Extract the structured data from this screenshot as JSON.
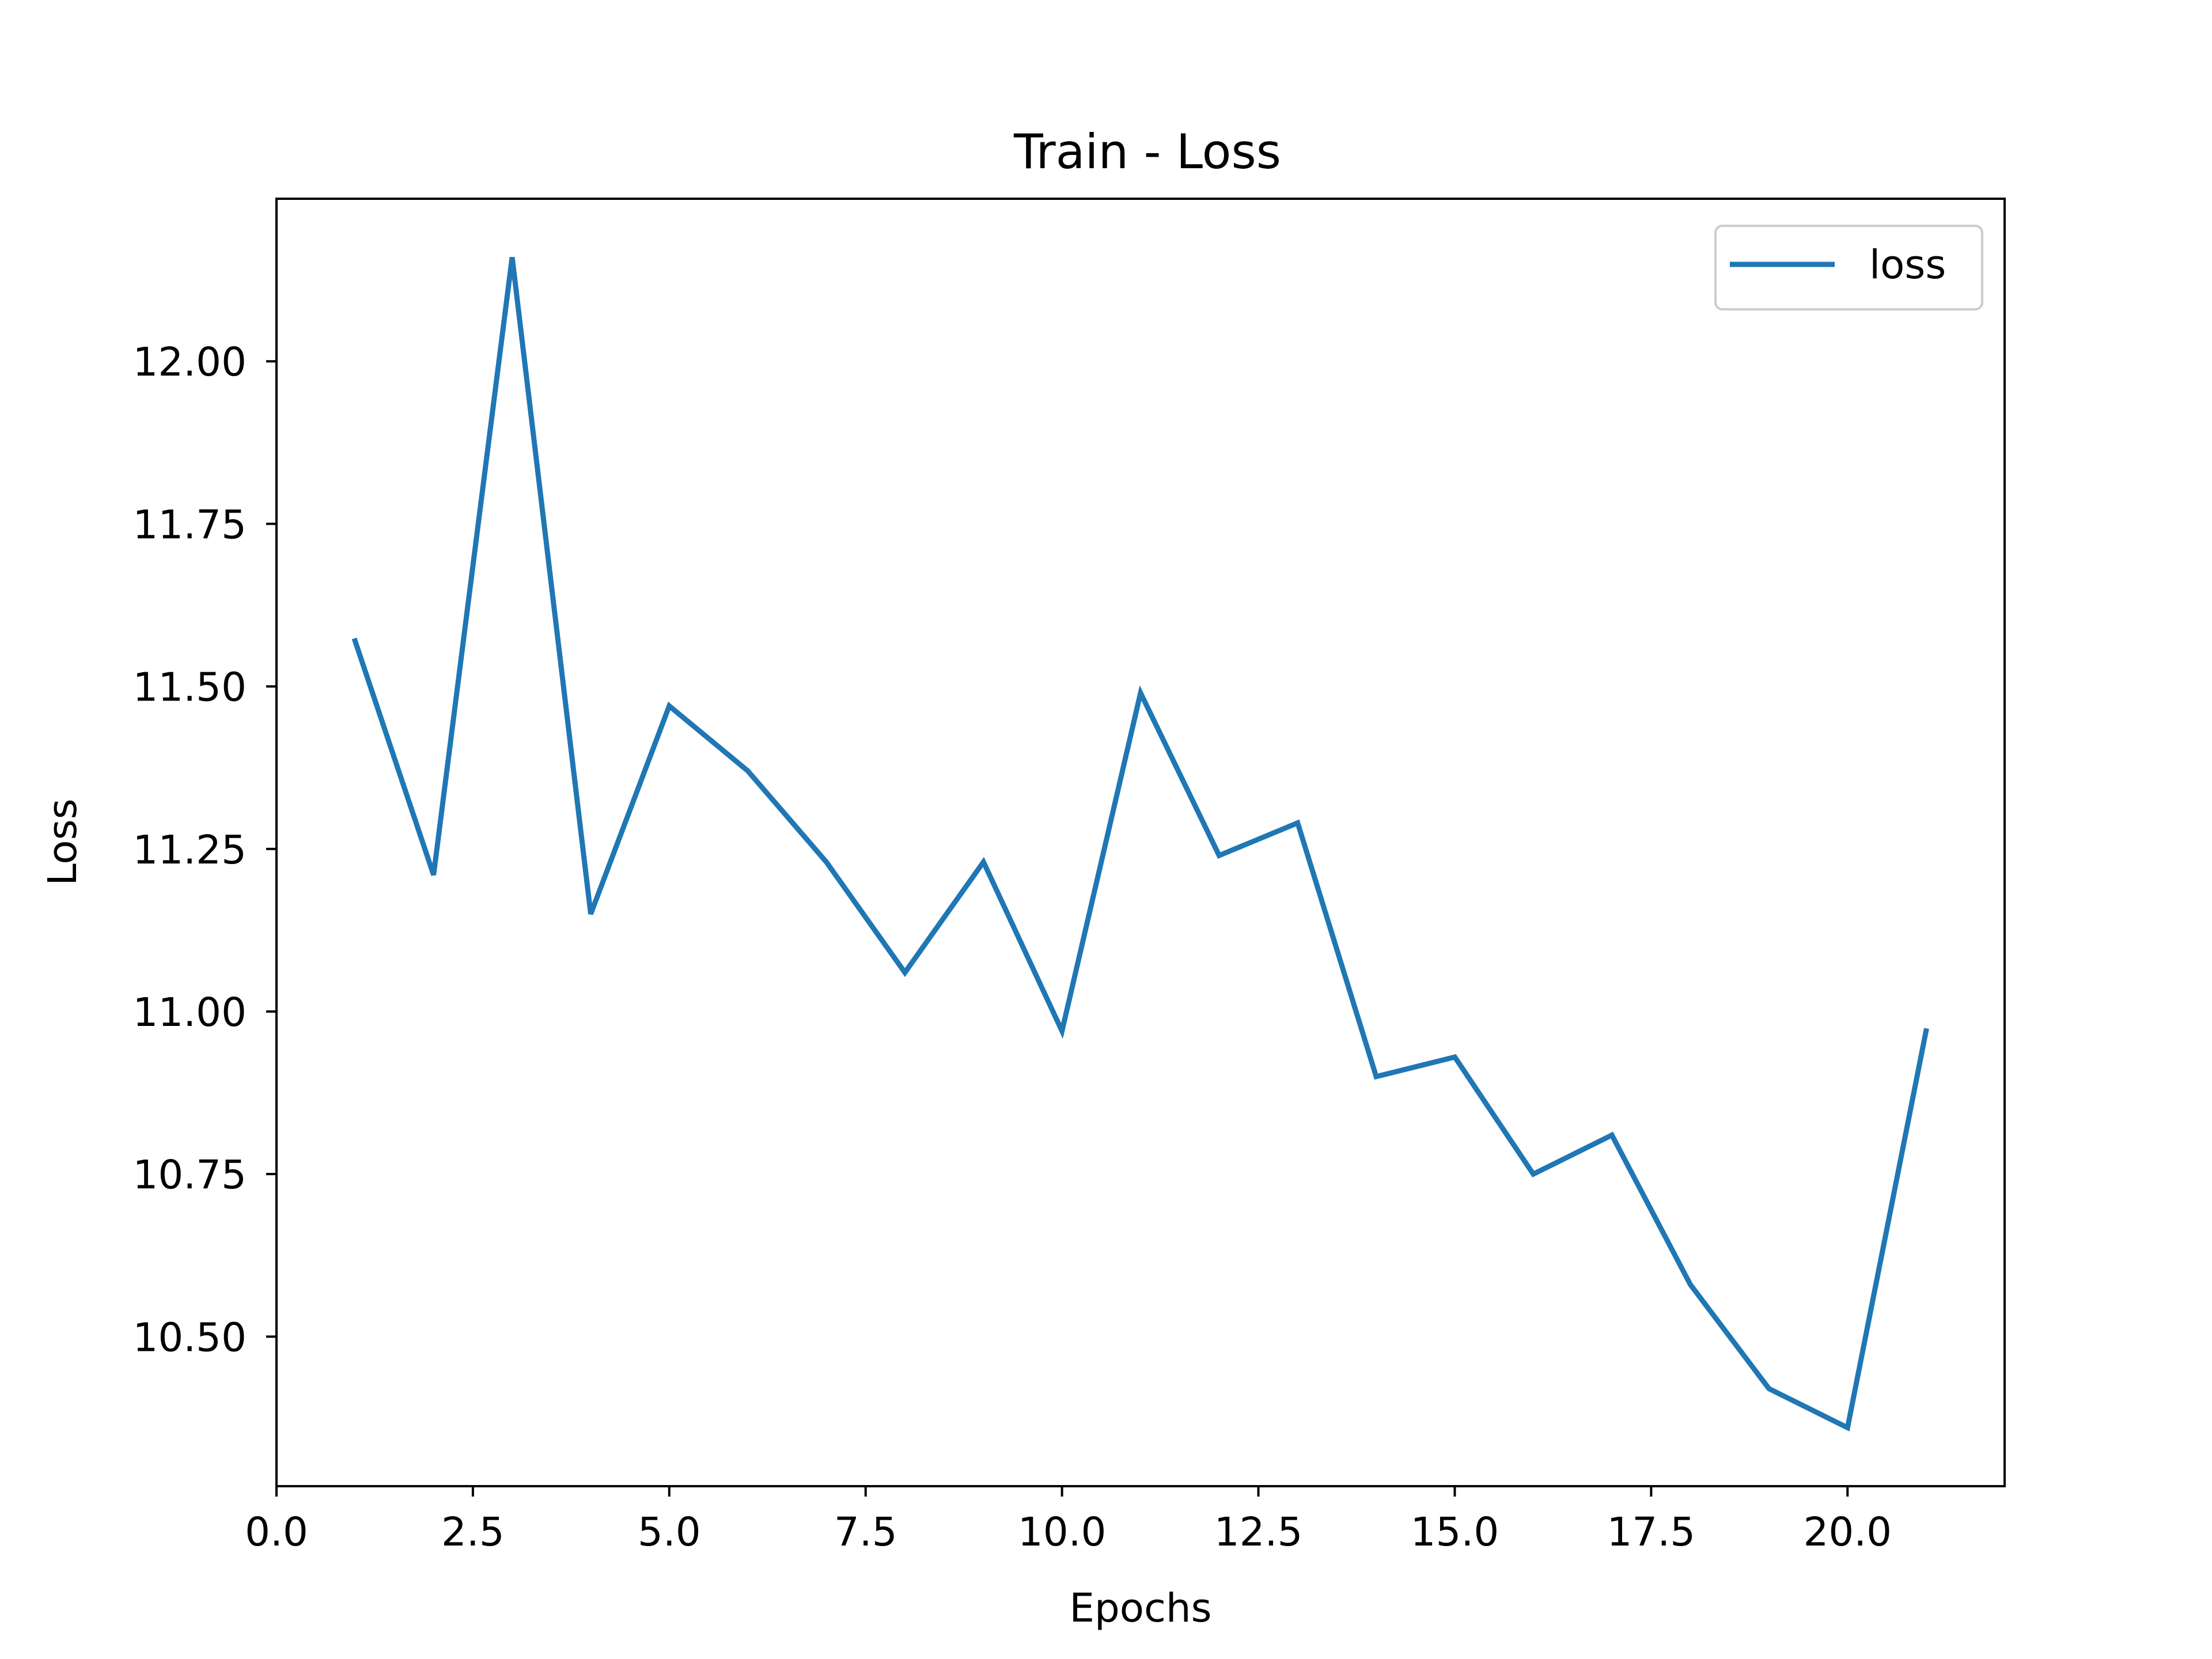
{
  "chart_data": {
    "type": "line",
    "title": "Train - Loss",
    "xlabel": "Epochs",
    "ylabel": "Loss",
    "xlim": [
      0,
      22
    ],
    "ylim": [
      10.27,
      12.25
    ],
    "x_ticks": [
      0.0,
      2.5,
      5.0,
      7.5,
      10.0,
      12.5,
      15.0,
      17.5,
      20.0
    ],
    "x_tick_labels": [
      "0.0",
      "2.5",
      "5.0",
      "7.5",
      "10.0",
      "12.5",
      "15.0",
      "17.5",
      "20.0"
    ],
    "y_ticks": [
      10.5,
      10.75,
      11.0,
      11.25,
      11.5,
      11.75,
      12.0
    ],
    "y_tick_labels": [
      "10.50",
      "10.75",
      "11.00",
      "11.25",
      "11.50",
      "11.75",
      "12.00"
    ],
    "grid": false,
    "legend": {
      "placement": "top-right",
      "entries": [
        "loss"
      ]
    },
    "series": [
      {
        "name": "loss",
        "color": "#1f77b4",
        "x": [
          1,
          2,
          3,
          4,
          5,
          6,
          7,
          8,
          9,
          10,
          11,
          12,
          13,
          14,
          15,
          16,
          17,
          18,
          19,
          20,
          21
        ],
        "y": [
          11.57,
          11.21,
          12.16,
          11.15,
          11.47,
          11.37,
          11.23,
          11.06,
          11.23,
          10.97,
          11.49,
          11.24,
          11.29,
          10.9,
          10.93,
          10.75,
          10.81,
          10.58,
          10.42,
          10.36,
          10.97
        ]
      }
    ]
  }
}
